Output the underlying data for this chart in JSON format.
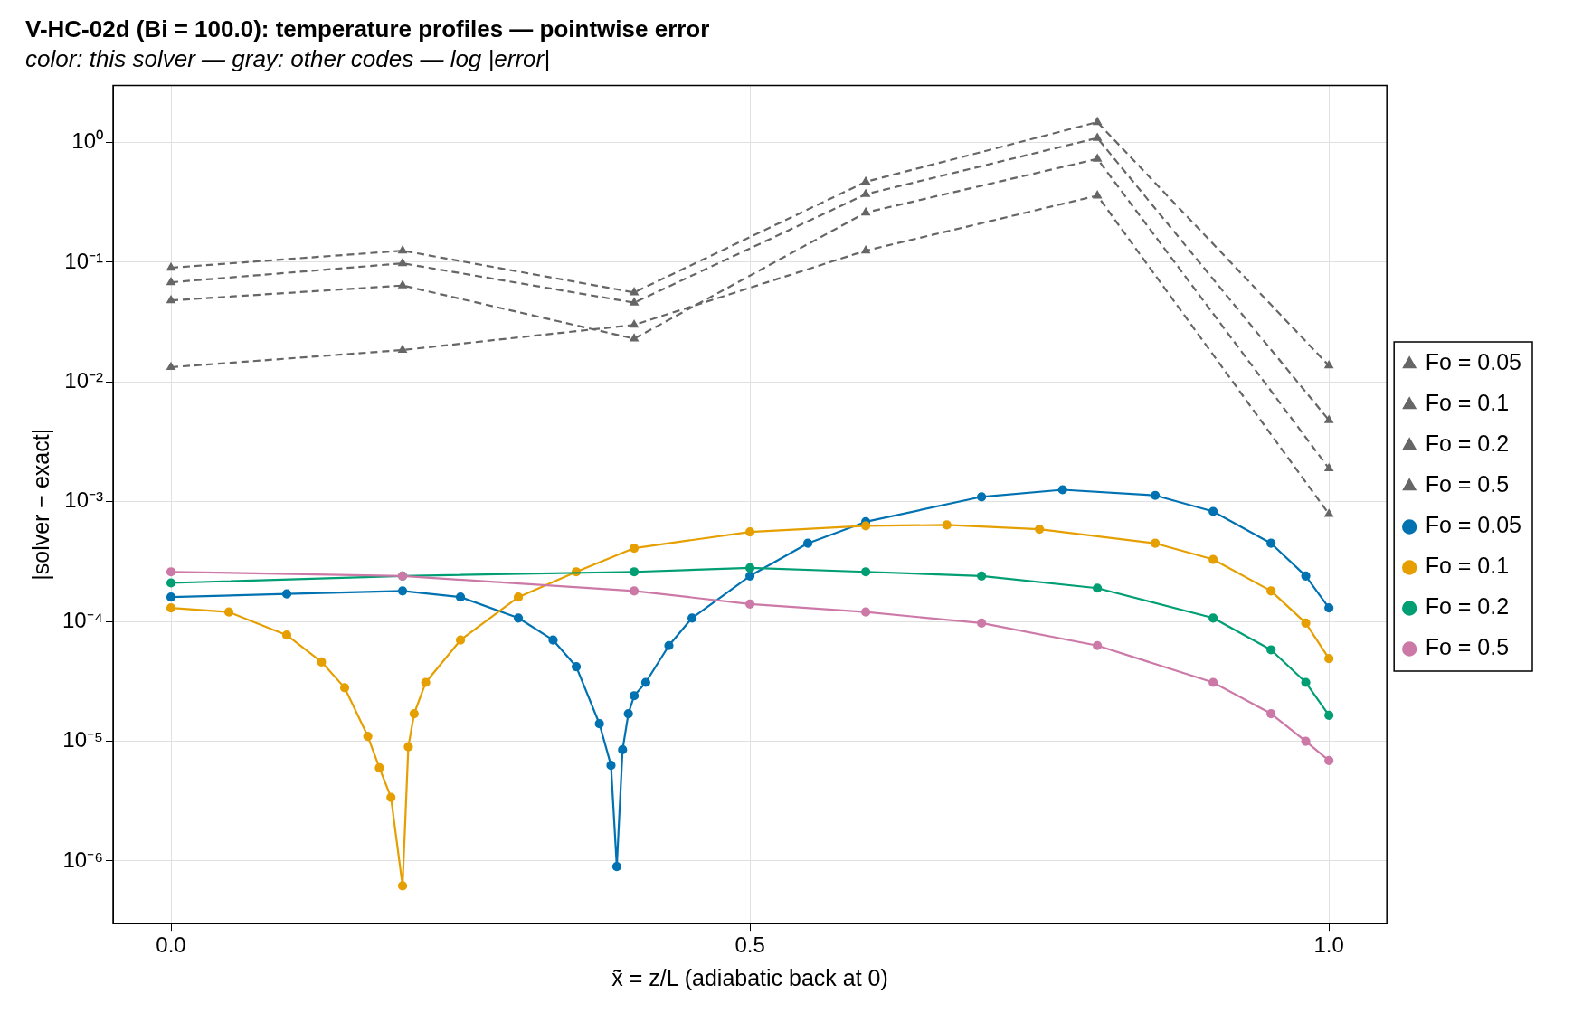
{
  "chart_data": {
    "type": "line",
    "title": "V-HC-02d (Bi = 100.0): temperature profiles — pointwise error",
    "subtitle": "color: this solver — gray: other codes — log |error|",
    "xlabel": "x̃ = z/L (adiabatic back at 0)",
    "ylabel": "|solver − exact|",
    "log": "y",
    "grid": true,
    "legend": "right",
    "xlim": [
      -0.05,
      1.05
    ],
    "xticks": [
      {
        "value": 0,
        "label": "0.0"
      },
      {
        "value": 0.5,
        "label": "0.5"
      },
      {
        "value": 1,
        "label": "1.0"
      }
    ],
    "ylim": [
      3e-07,
      3
    ],
    "yticks": [
      {
        "value": 1e-06,
        "label": "10⁻⁶"
      },
      {
        "value": 1e-05,
        "label": "10⁻⁵"
      },
      {
        "value": 0.0001,
        "label": "10⁻⁴"
      },
      {
        "value": 0.001,
        "label": "10⁻³"
      },
      {
        "value": 0.01,
        "label": "10⁻²"
      },
      {
        "value": 0.1,
        "label": "10⁻¹"
      },
      {
        "value": 1,
        "label": "10⁰"
      }
    ],
    "series": [
      {
        "name": "Fo = 0.05",
        "color": "#666666",
        "line_style": "dashed",
        "marker": "triangle",
        "x": [
          0,
          0.2,
          0.4,
          0.6,
          0.8,
          1.0
        ],
        "values": [
          0.09,
          0.125,
          0.056,
          0.47,
          1.48,
          0.0137
        ]
      },
      {
        "name": "Fo = 0.1",
        "color": "#666666",
        "line_style": "dashed",
        "marker": "triangle",
        "x": [
          0,
          0.2,
          0.4,
          0.6,
          0.8,
          1.0
        ],
        "values": [
          0.068,
          0.098,
          0.046,
          0.37,
          1.09,
          0.0048
        ]
      },
      {
        "name": "Fo = 0.2",
        "color": "#666666",
        "line_style": "dashed",
        "marker": "triangle",
        "x": [
          0,
          0.2,
          0.4,
          0.6,
          0.8,
          1.0
        ],
        "values": [
          0.048,
          0.064,
          0.023,
          0.26,
          0.73,
          0.0019
        ]
      },
      {
        "name": "Fo = 0.5",
        "color": "#666666",
        "line_style": "dashed",
        "marker": "triangle",
        "x": [
          0,
          0.2,
          0.4,
          0.6,
          0.8,
          1.0
        ],
        "values": [
          0.0133,
          0.0185,
          0.03,
          0.125,
          0.36,
          0.00079
        ]
      },
      {
        "name": "Fo = 0.05",
        "color": "#0072b2",
        "line_style": "solid",
        "marker": "circle",
        "x": [
          0,
          0.1,
          0.2,
          0.25,
          0.3,
          0.33,
          0.35,
          0.37,
          0.38,
          0.385,
          0.39,
          0.395,
          0.4,
          0.41,
          0.43,
          0.45,
          0.5,
          0.55,
          0.6,
          0.7,
          0.77,
          0.85,
          0.9,
          0.95,
          0.98,
          1.0
        ],
        "values": [
          0.00016,
          0.00017,
          0.00018,
          0.00016,
          0.000107,
          7e-05,
          4.2e-05,
          1.4e-05,
          6.3e-06,
          9e-07,
          8.5e-06,
          1.7e-05,
          2.4e-05,
          3.1e-05,
          6.3e-05,
          0.000107,
          0.00024,
          0.00045,
          0.00068,
          0.0011,
          0.00126,
          0.00113,
          0.00083,
          0.00045,
          0.00024,
          0.00013
        ]
      },
      {
        "name": "Fo = 0.1",
        "color": "#e69f00",
        "line_style": "solid",
        "marker": "circle",
        "x": [
          0,
          0.05,
          0.1,
          0.13,
          0.15,
          0.17,
          0.18,
          0.19,
          0.2,
          0.205,
          0.21,
          0.22,
          0.25,
          0.3,
          0.35,
          0.4,
          0.5,
          0.6,
          0.67,
          0.75,
          0.85,
          0.9,
          0.95,
          0.98,
          1.0
        ],
        "values": [
          0.00013,
          0.00012,
          7.7e-05,
          4.6e-05,
          2.8e-05,
          1.1e-05,
          6e-06,
          3.4e-06,
          6.2e-07,
          9e-06,
          1.7e-05,
          3.1e-05,
          7e-05,
          0.00016,
          0.00026,
          0.00041,
          0.00056,
          0.00063,
          0.00064,
          0.00059,
          0.00045,
          0.00033,
          0.00018,
          9.7e-05,
          4.9e-05
        ]
      },
      {
        "name": "Fo = 0.2",
        "color": "#009e73",
        "line_style": "solid",
        "marker": "circle",
        "x": [
          0,
          0.2,
          0.4,
          0.5,
          0.6,
          0.7,
          0.8,
          0.9,
          0.95,
          0.98,
          1.0
        ],
        "values": [
          0.00021,
          0.00024,
          0.00026,
          0.00028,
          0.00026,
          0.00024,
          0.00019,
          0.000107,
          5.8e-05,
          3.1e-05,
          1.65e-05
        ]
      },
      {
        "name": "Fo = 0.5",
        "color": "#cc79a7",
        "line_style": "solid",
        "marker": "circle",
        "x": [
          0,
          0.2,
          0.4,
          0.5,
          0.6,
          0.7,
          0.8,
          0.9,
          0.95,
          0.98,
          1.0
        ],
        "values": [
          0.00026,
          0.00024,
          0.00018,
          0.00014,
          0.00012,
          9.7e-05,
          6.3e-05,
          3.1e-05,
          1.7e-05,
          1e-05,
          6.9e-06
        ]
      }
    ]
  }
}
